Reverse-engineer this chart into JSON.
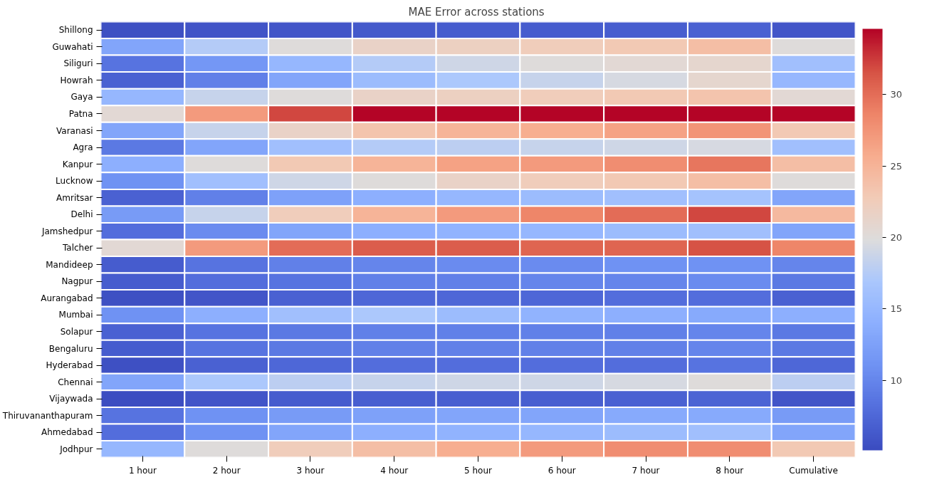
{
  "chart_data": {
    "type": "heatmap",
    "title": "MAE  Error across stations",
    "categories": [
      "1 hour",
      "2 hour",
      "3 hour",
      "4 hour",
      "5 hour",
      "6 hour",
      "7 hour",
      "8 hour",
      "Cumulative"
    ],
    "y_categories": [
      "Shillong",
      "Guwahati",
      "Siliguri",
      "Howrah",
      "Gaya",
      "Patna",
      "Varanasi",
      "Agra",
      "Kanpur",
      "Lucknow",
      "Amritsar",
      "Delhi",
      "Jamshedpur",
      "Talcher",
      "Mandideep",
      "Nagpur",
      "Aurangabad",
      "Mumbai",
      "Solapur",
      "Bengaluru",
      "Hyderabad",
      "Chennai",
      "Vijaywada",
      "Thiruvananthapuram",
      "Ahmedabad",
      "Jodhpur"
    ],
    "cells": [
      [
        5.5,
        5.8,
        6,
        6.3,
        6.5,
        6.5,
        6.7,
        7,
        6
      ],
      [
        13,
        17.5,
        20,
        21.5,
        22,
        22.5,
        23,
        24,
        20
      ],
      [
        8.5,
        11.5,
        15,
        17.5,
        19,
        20,
        20.5,
        21,
        16
      ],
      [
        7,
        9.5,
        13,
        15.5,
        17,
        18.5,
        19.5,
        21,
        15
      ],
      [
        15,
        18.5,
        20,
        21.5,
        22,
        22.5,
        23,
        23.5,
        20.5
      ],
      [
        20.5,
        27,
        32,
        34.5,
        34.5,
        34.5,
        34.5,
        34.5,
        34.5
      ],
      [
        13,
        18.5,
        21.5,
        23.5,
        25,
        25.5,
        26.5,
        27.5,
        23
      ],
      [
        9,
        13,
        16,
        17.5,
        18,
        18.5,
        19,
        19.5,
        16
      ],
      [
        14,
        20,
        23,
        25,
        26.5,
        27,
        28,
        29.5,
        24
      ],
      [
        11,
        16,
        19,
        20,
        21.5,
        22.5,
        23,
        24,
        20
      ],
      [
        7,
        9.5,
        12.5,
        14,
        15,
        15.5,
        16,
        16.5,
        13
      ],
      [
        12,
        18.5,
        22.5,
        25,
        27,
        28.5,
        30,
        32,
        24.5
      ],
      [
        8,
        10.5,
        13,
        14,
        14.5,
        15,
        15.5,
        16,
        13
      ],
      [
        20.5,
        27,
        30,
        31,
        31,
        30.5,
        30.5,
        31.5,
        28.5
      ],
      [
        6.5,
        8.5,
        9.5,
        10,
        10.5,
        10.5,
        11,
        11,
        10
      ],
      [
        6.5,
        8,
        8.5,
        9.5,
        9.5,
        10,
        10,
        10.5,
        9
      ],
      [
        5.5,
        6,
        7,
        7.5,
        7.5,
        7.5,
        8,
        8,
        7
      ],
      [
        11,
        14,
        16,
        17,
        15.5,
        14.5,
        14,
        13.5,
        14
      ],
      [
        7,
        8.5,
        9,
        9.5,
        9.5,
        9.5,
        9.5,
        10,
        9
      ],
      [
        6.5,
        8.5,
        9,
        9.5,
        9.5,
        9.5,
        9.5,
        10,
        9
      ],
      [
        5.5,
        7,
        7.5,
        8,
        8,
        8,
        8,
        8.5,
        7.5
      ],
      [
        13,
        17,
        18,
        18.5,
        19,
        19,
        19.5,
        20,
        18
      ],
      [
        5.3,
        6,
        6.5,
        6.8,
        6.8,
        6.8,
        7,
        7.2,
        6
      ],
      [
        8.5,
        11,
        12,
        12.5,
        13,
        13,
        13.5,
        13.5,
        12
      ],
      [
        8,
        11,
        13,
        14,
        14.5,
        15,
        15.5,
        16,
        13
      ],
      [
        15,
        20,
        22.5,
        24,
        25.5,
        27,
        28,
        28,
        23
      ]
    ],
    "clim": [
      5.1,
      34.6
    ],
    "cticks": [
      10,
      15,
      20,
      25,
      30
    ]
  }
}
